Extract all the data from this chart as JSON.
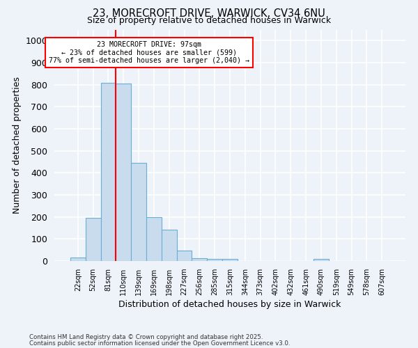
{
  "title": "23, MORECROFT DRIVE, WARWICK, CV34 6NU",
  "subtitle": "Size of property relative to detached houses in Warwick",
  "xlabel": "Distribution of detached houses by size in Warwick",
  "ylabel": "Number of detached properties",
  "footnote1": "Contains HM Land Registry data © Crown copyright and database right 2025.",
  "footnote2": "Contains public sector information licensed under the Open Government Licence v3.0.",
  "bar_labels": [
    "22sqm",
    "52sqm",
    "81sqm",
    "110sqm",
    "139sqm",
    "169sqm",
    "198sqm",
    "227sqm",
    "256sqm",
    "285sqm",
    "315sqm",
    "344sqm",
    "373sqm",
    "402sqm",
    "432sqm",
    "461sqm",
    "490sqm",
    "519sqm",
    "549sqm",
    "578sqm",
    "607sqm"
  ],
  "bar_values": [
    15,
    195,
    810,
    805,
    445,
    200,
    143,
    48,
    12,
    10,
    10,
    0,
    0,
    0,
    0,
    0,
    8,
    0,
    0,
    0,
    0
  ],
  "bar_color": "#c8dcee",
  "bar_edge_color": "#6aaed6",
  "ylim": [
    0,
    1050
  ],
  "yticks": [
    0,
    100,
    200,
    300,
    400,
    500,
    600,
    700,
    800,
    900,
    1000
  ],
  "vline_x": 2.5,
  "vline_color": "red",
  "annotation_text_line1": "23 MORECROFT DRIVE: 97sqm",
  "annotation_text_line2": "← 23% of detached houses are smaller (599)",
  "annotation_text_line3": "77% of semi-detached houses are larger (2,040) →",
  "box_facecolor": "white",
  "box_edgecolor": "red",
  "background_color": "#eef2f9",
  "grid_color": "white"
}
